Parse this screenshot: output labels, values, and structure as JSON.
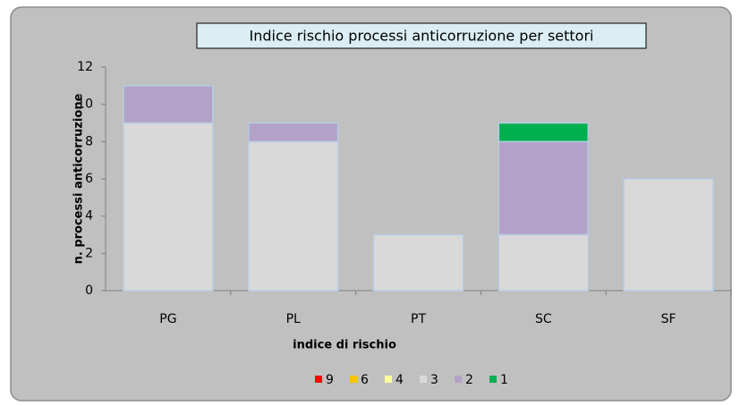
{
  "chart_data": {
    "type": "stacked_bar",
    "title": "Indice rischio processi anticorruzione per settori",
    "x_label": "indice di rischio",
    "y_label": "n. processi  anticorruzione",
    "categories": [
      "PG",
      "PL",
      "PT",
      "SC",
      "SF"
    ],
    "series": [
      {
        "name": "9",
        "color": "#ff0000",
        "values": [
          0,
          0,
          0,
          0,
          0
        ]
      },
      {
        "name": "6",
        "color": "#ffc000",
        "values": [
          0,
          0,
          0,
          0,
          0
        ]
      },
      {
        "name": "4",
        "color": "#ffff99",
        "values": [
          0,
          0,
          0,
          0,
          0
        ]
      },
      {
        "name": "3",
        "color": "#d9d9d9",
        "values": [
          9,
          8,
          3,
          3,
          6
        ]
      },
      {
        "name": "2",
        "color": "#b3a2c7",
        "values": [
          2,
          1,
          0,
          5,
          0
        ]
      },
      {
        "name": "1",
        "color": "#00b050",
        "values": [
          0,
          0,
          0,
          1,
          0
        ]
      }
    ],
    "ylim": [
      0,
      12
    ],
    "yticks": [
      0,
      2,
      4,
      6,
      8,
      10,
      12
    ],
    "legend": "bottom"
  }
}
